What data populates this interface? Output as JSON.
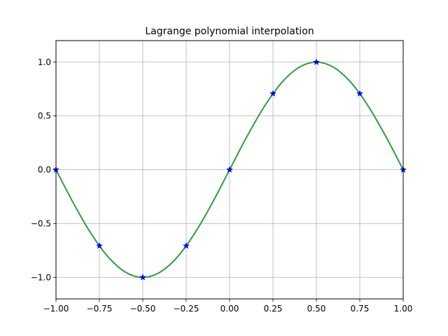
{
  "chart_data": {
    "type": "line",
    "title": "Lagrange polynomial interpolation",
    "xlabel": "",
    "ylabel": "",
    "xlim": [
      -1.0,
      1.0
    ],
    "ylim": [
      -1.2,
      1.2
    ],
    "grid": true,
    "x_ticks": [
      -1.0,
      -0.75,
      -0.5,
      -0.25,
      0.0,
      0.25,
      0.5,
      0.75,
      1.0
    ],
    "x_tick_labels": [
      "−1.00",
      "−0.75",
      "−0.50",
      "−0.25",
      "0.00",
      "0.25",
      "0.50",
      "0.75",
      "1.00"
    ],
    "y_ticks": [
      -1.0,
      -0.5,
      0.0,
      0.5,
      1.0
    ],
    "y_tick_labels": [
      "−1.0",
      "−0.5",
      "0.0",
      "0.5",
      "1.0"
    ],
    "series": [
      {
        "kind": "line",
        "color": "#1f77b4",
        "x": [
          -1.0,
          -0.9,
          -0.8,
          -0.7,
          -0.6,
          -0.5,
          -0.4,
          -0.3,
          -0.2,
          -0.1,
          0.0,
          0.1,
          0.2,
          0.3,
          0.4,
          0.5,
          0.6,
          0.7,
          0.8,
          0.9,
          1.0
        ],
        "y": [
          0.0,
          -0.309,
          -0.588,
          -0.809,
          -0.951,
          -1.0,
          -0.951,
          -0.809,
          -0.588,
          -0.309,
          0.0,
          0.309,
          0.588,
          0.809,
          0.951,
          1.0,
          0.951,
          0.809,
          0.588,
          0.309,
          0.0
        ]
      },
      {
        "kind": "line",
        "color": "#2ca02c",
        "x": [
          -1.0,
          -0.9,
          -0.8,
          -0.7,
          -0.6,
          -0.5,
          -0.4,
          -0.3,
          -0.2,
          -0.1,
          0.0,
          0.1,
          0.2,
          0.3,
          0.4,
          0.5,
          0.6,
          0.7,
          0.8,
          0.9,
          1.0
        ],
        "y": [
          0.0,
          -0.309,
          -0.588,
          -0.809,
          -0.951,
          -1.0,
          -0.951,
          -0.809,
          -0.588,
          -0.309,
          0.0,
          0.309,
          0.588,
          0.809,
          0.951,
          1.0,
          0.951,
          0.809,
          0.588,
          0.309,
          0.0
        ]
      },
      {
        "kind": "scatter",
        "marker": "star",
        "color": "#0000ff",
        "x": [
          -1.0,
          -0.75,
          -0.5,
          -0.25,
          0.0,
          0.25,
          0.5,
          0.75,
          1.0
        ],
        "y": [
          0.0,
          -0.707,
          -1.0,
          -0.707,
          0.0,
          0.707,
          1.0,
          0.707,
          0.0
        ]
      }
    ]
  }
}
